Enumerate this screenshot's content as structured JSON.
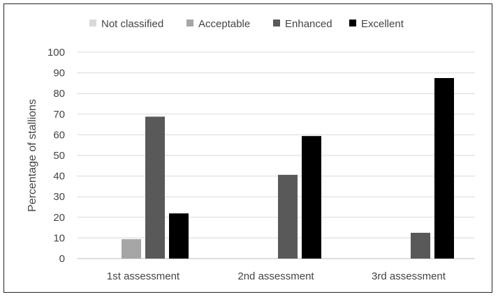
{
  "chart_data": {
    "type": "bar",
    "title": "",
    "xlabel": "",
    "ylabel": "Percentage of stallions",
    "ylim": [
      0,
      100
    ],
    "yticks": [
      0,
      10,
      20,
      30,
      40,
      50,
      60,
      70,
      80,
      90,
      100
    ],
    "grid": true,
    "legend_position": "top",
    "categories": [
      "1st assessment",
      "2nd assessment",
      "3rd assessment"
    ],
    "series": [
      {
        "name": "Not classified",
        "color": "#d9d9d9",
        "values": [
          0,
          0,
          0
        ]
      },
      {
        "name": "Acceptable",
        "color": "#a6a6a6",
        "values": [
          9.4,
          0,
          0
        ]
      },
      {
        "name": "Enhanced",
        "color": "#595959",
        "values": [
          68.8,
          40.6,
          12.5
        ]
      },
      {
        "name": "Excellent",
        "color": "#000000",
        "values": [
          21.9,
          59.4,
          87.5
        ]
      }
    ]
  }
}
